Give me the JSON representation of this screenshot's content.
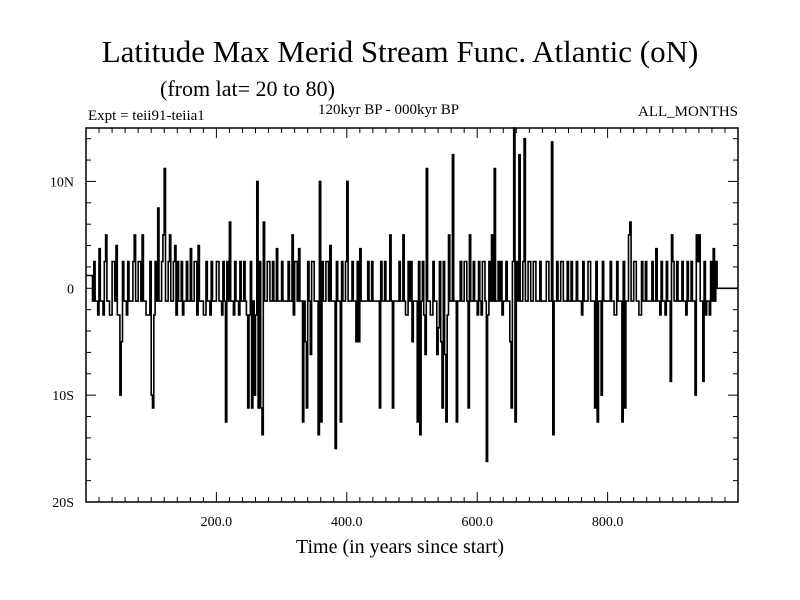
{
  "header": {
    "title": "Latitude Max Merid Stream Func. Atlantic (oN)",
    "subtitle": "(from lat= 20 to 80)",
    "experiment": "Expt = teii91-teiia1",
    "period": "120kyr BP - 000kyr BP",
    "months": "ALL_MONTHS"
  },
  "chart_data": {
    "type": "line",
    "title": "Latitude Max Merid Stream Func. Atlantic (oN)",
    "subtitle": "(from lat= 20 to 80)",
    "xlabel": "Time (in years since start)",
    "ylabel": "",
    "xlim": [
      0,
      1000
    ],
    "ylim": [
      -20,
      15
    ],
    "x_ticks": [
      {
        "value": 200,
        "label": "200.0"
      },
      {
        "value": 400,
        "label": "400.0"
      },
      {
        "value": 600,
        "label": "600.0"
      },
      {
        "value": 800,
        "label": "800.0"
      }
    ],
    "y_ticks": [
      {
        "value": 10,
        "label": "10N"
      },
      {
        "value": 0,
        "label": "0"
      },
      {
        "value": -10,
        "label": "10S"
      },
      {
        "value": -20,
        "label": "20S"
      }
    ],
    "baseline": -1.2,
    "step_points": [
      [
        0,
        1.2
      ],
      [
        8,
        1.2
      ],
      [
        10,
        -1.2
      ],
      [
        12,
        2.5
      ],
      [
        14,
        -1.2
      ],
      [
        18,
        -2.5
      ],
      [
        20,
        3.7
      ],
      [
        22,
        -1.2
      ],
      [
        26,
        -2.5
      ],
      [
        28,
        2.5
      ],
      [
        30,
        5.0
      ],
      [
        32,
        -1.2
      ],
      [
        36,
        -2.5
      ],
      [
        40,
        2.5
      ],
      [
        44,
        -1.2
      ],
      [
        46,
        4.0
      ],
      [
        48,
        -2.5
      ],
      [
        52,
        -10.0
      ],
      [
        54,
        -5.0
      ],
      [
        56,
        2.5
      ],
      [
        58,
        -1.2
      ],
      [
        62,
        -2.5
      ],
      [
        64,
        2.5
      ],
      [
        66,
        -1.2
      ],
      [
        72,
        2.5
      ],
      [
        74,
        5.0
      ],
      [
        76,
        -1.2
      ],
      [
        80,
        2.5
      ],
      [
        84,
        -1.2
      ],
      [
        86,
        5.0
      ],
      [
        88,
        -1.2
      ],
      [
        92,
        -2.5
      ],
      [
        96,
        -2.5
      ],
      [
        98,
        2.5
      ],
      [
        100,
        -10.0
      ],
      [
        102,
        -11.2
      ],
      [
        104,
        -2.5
      ],
      [
        106,
        2.5
      ],
      [
        108,
        -1.2
      ],
      [
        110,
        7.5
      ],
      [
        112,
        -1.2
      ],
      [
        116,
        2.5
      ],
      [
        118,
        5.0
      ],
      [
        120,
        11.2
      ],
      [
        122,
        -1.2
      ],
      [
        126,
        2.5
      ],
      [
        128,
        5.0
      ],
      [
        130,
        -1.2
      ],
      [
        134,
        2.5
      ],
      [
        136,
        4.0
      ],
      [
        138,
        -2.5
      ],
      [
        140,
        2.5
      ],
      [
        142,
        -1.2
      ],
      [
        146,
        2.5
      ],
      [
        148,
        -2.5
      ],
      [
        150,
        -1.2
      ],
      [
        154,
        2.5
      ],
      [
        156,
        -1.2
      ],
      [
        160,
        3.7
      ],
      [
        162,
        -1.2
      ],
      [
        166,
        2.5
      ],
      [
        170,
        -2.5
      ],
      [
        172,
        4.0
      ],
      [
        174,
        -1.2
      ],
      [
        180,
        -2.5
      ],
      [
        184,
        2.5
      ],
      [
        186,
        -1.2
      ],
      [
        190,
        -2.5
      ],
      [
        192,
        2.5
      ],
      [
        194,
        -1.2
      ],
      [
        200,
        2.5
      ],
      [
        204,
        -1.2
      ],
      [
        208,
        -2.5
      ],
      [
        210,
        2.5
      ],
      [
        212,
        -1.2
      ],
      [
        214,
        -12.5
      ],
      [
        216,
        2.5
      ],
      [
        218,
        -1.2
      ],
      [
        220,
        6.2
      ],
      [
        222,
        -1.2
      ],
      [
        226,
        -2.5
      ],
      [
        228,
        2.5
      ],
      [
        230,
        -1.2
      ],
      [
        234,
        -2.5
      ],
      [
        236,
        2.5
      ],
      [
        238,
        -1.2
      ],
      [
        242,
        2.5
      ],
      [
        244,
        -1.2
      ],
      [
        246,
        -2.5
      ],
      [
        248,
        -11.2
      ],
      [
        250,
        -2.5
      ],
      [
        252,
        2.5
      ],
      [
        254,
        -11.2
      ],
      [
        256,
        -1.2
      ],
      [
        258,
        -10.0
      ],
      [
        260,
        -2.5
      ],
      [
        262,
        10.0
      ],
      [
        264,
        -11.2
      ],
      [
        266,
        2.5
      ],
      [
        268,
        -11.2
      ],
      [
        270,
        -13.7
      ],
      [
        272,
        6.2
      ],
      [
        274,
        -1.2
      ],
      [
        278,
        2.5
      ],
      [
        282,
        -1.2
      ],
      [
        286,
        2.5
      ],
      [
        288,
        -1.2
      ],
      [
        292,
        3.7
      ],
      [
        294,
        -1.2
      ],
      [
        296,
        -1.2
      ],
      [
        300,
        2.5
      ],
      [
        302,
        -1.2
      ],
      [
        308,
        -1.2
      ],
      [
        310,
        2.5
      ],
      [
        312,
        -1.2
      ],
      [
        316,
        5.0
      ],
      [
        318,
        -2.5
      ],
      [
        320,
        2.5
      ],
      [
        324,
        -1.2
      ],
      [
        326,
        3.7
      ],
      [
        328,
        -1.2
      ],
      [
        332,
        -12.5
      ],
      [
        334,
        -1.2
      ],
      [
        336,
        -5.0
      ],
      [
        338,
        -11.2
      ],
      [
        340,
        2.5
      ],
      [
        342,
        -1.2
      ],
      [
        344,
        -6.2
      ],
      [
        346,
        2.5
      ],
      [
        350,
        -1.2
      ],
      [
        354,
        -1.2
      ],
      [
        356,
        -13.7
      ],
      [
        358,
        10.0
      ],
      [
        360,
        -12.5
      ],
      [
        362,
        2.5
      ],
      [
        364,
        -1.2
      ],
      [
        368,
        2.5
      ],
      [
        372,
        -1.2
      ],
      [
        374,
        4.0
      ],
      [
        376,
        -1.2
      ],
      [
        380,
        -1.2
      ],
      [
        382,
        -15.0
      ],
      [
        384,
        2.5
      ],
      [
        386,
        -1.2
      ],
      [
        390,
        -12.5
      ],
      [
        392,
        2.5
      ],
      [
        394,
        -1.2
      ],
      [
        398,
        2.5
      ],
      [
        400,
        10.0
      ],
      [
        402,
        -1.2
      ],
      [
        406,
        -1.2
      ],
      [
        408,
        2.5
      ],
      [
        410,
        -1.2
      ],
      [
        414,
        -5.0
      ],
      [
        416,
        2.5
      ],
      [
        418,
        -5.0
      ],
      [
        420,
        3.7
      ],
      [
        422,
        -1.2
      ],
      [
        428,
        -1.2
      ],
      [
        432,
        2.5
      ],
      [
        434,
        -1.2
      ],
      [
        438,
        2.5
      ],
      [
        440,
        -1.2
      ],
      [
        444,
        -1.2
      ],
      [
        448,
        -1.2
      ],
      [
        450,
        -11.2
      ],
      [
        452,
        2.5
      ],
      [
        454,
        -1.2
      ],
      [
        458,
        2.5
      ],
      [
        460,
        -1.2
      ],
      [
        466,
        5.0
      ],
      [
        468,
        -1.2
      ],
      [
        470,
        -11.2
      ],
      [
        472,
        -1.2
      ],
      [
        476,
        -1.2
      ],
      [
        480,
        2.5
      ],
      [
        482,
        -1.2
      ],
      [
        486,
        5.0
      ],
      [
        488,
        -1.2
      ],
      [
        490,
        -2.5
      ],
      [
        494,
        2.5
      ],
      [
        496,
        -1.2
      ],
      [
        498,
        2.5
      ],
      [
        500,
        -5.0
      ],
      [
        502,
        -1.2
      ],
      [
        508,
        -12.5
      ],
      [
        510,
        2.5
      ],
      [
        512,
        -13.7
      ],
      [
        514,
        -1.2
      ],
      [
        516,
        2.5
      ],
      [
        518,
        -2.5
      ],
      [
        520,
        -6.2
      ],
      [
        522,
        11.2
      ],
      [
        524,
        -1.2
      ],
      [
        528,
        -2.5
      ],
      [
        532,
        2.5
      ],
      [
        534,
        -1.2
      ],
      [
        538,
        -6.2
      ],
      [
        540,
        -3.7
      ],
      [
        542,
        2.5
      ],
      [
        544,
        -5.0
      ],
      [
        546,
        -11.2
      ],
      [
        548,
        2.5
      ],
      [
        550,
        -6.2
      ],
      [
        552,
        -12.5
      ],
      [
        554,
        -2.5
      ],
      [
        556,
        5.0
      ],
      [
        558,
        -1.2
      ],
      [
        562,
        12.5
      ],
      [
        564,
        -1.2
      ],
      [
        568,
        -12.5
      ],
      [
        570,
        -1.2
      ],
      [
        574,
        2.5
      ],
      [
        576,
        -1.2
      ],
      [
        580,
        2.5
      ],
      [
        584,
        -1.2
      ],
      [
        586,
        -11.2
      ],
      [
        588,
        5.0
      ],
      [
        590,
        -1.2
      ],
      [
        594,
        2.5
      ],
      [
        596,
        -1.2
      ],
      [
        600,
        -2.5
      ],
      [
        602,
        2.5
      ],
      [
        604,
        -1.2
      ],
      [
        606,
        -2.5
      ],
      [
        608,
        2.5
      ],
      [
        612,
        -1.2
      ],
      [
        614,
        -16.2
      ],
      [
        616,
        -2.5
      ],
      [
        618,
        2.5
      ],
      [
        620,
        -1.2
      ],
      [
        622,
        5.0
      ],
      [
        624,
        -1.2
      ],
      [
        626,
        11.2
      ],
      [
        628,
        -1.2
      ],
      [
        632,
        2.5
      ],
      [
        634,
        -1.2
      ],
      [
        636,
        2.5
      ],
      [
        638,
        -2.5
      ],
      [
        640,
        -1.2
      ],
      [
        644,
        2.5
      ],
      [
        646,
        -1.2
      ],
      [
        650,
        -5.0
      ],
      [
        652,
        -11.2
      ],
      [
        654,
        2.5
      ],
      [
        656,
        15.0
      ],
      [
        658,
        -12.5
      ],
      [
        660,
        2.5
      ],
      [
        662,
        -1.2
      ],
      [
        664,
        12.5
      ],
      [
        666,
        -1.2
      ],
      [
        670,
        2.5
      ],
      [
        672,
        14.0
      ],
      [
        674,
        -1.2
      ],
      [
        678,
        2.5
      ],
      [
        682,
        -1.2
      ],
      [
        686,
        2.5
      ],
      [
        690,
        -1.2
      ],
      [
        694,
        -1.2
      ],
      [
        696,
        2.5
      ],
      [
        698,
        -1.2
      ],
      [
        702,
        -1.2
      ],
      [
        706,
        2.5
      ],
      [
        710,
        -1.2
      ],
      [
        714,
        13.7
      ],
      [
        716,
        -13.7
      ],
      [
        718,
        -1.2
      ],
      [
        722,
        2.5
      ],
      [
        724,
        -1.2
      ],
      [
        728,
        2.5
      ],
      [
        732,
        -1.2
      ],
      [
        738,
        2.5
      ],
      [
        740,
        -1.2
      ],
      [
        744,
        2.5
      ],
      [
        746,
        -1.2
      ],
      [
        750,
        -1.2
      ],
      [
        752,
        2.5
      ],
      [
        754,
        -1.2
      ],
      [
        760,
        -2.5
      ],
      [
        762,
        2.5
      ],
      [
        764,
        -1.2
      ],
      [
        770,
        2.5
      ],
      [
        774,
        -1.2
      ],
      [
        780,
        -11.2
      ],
      [
        782,
        2.5
      ],
      [
        784,
        -12.5
      ],
      [
        786,
        -1.2
      ],
      [
        790,
        -10.0
      ],
      [
        792,
        2.5
      ],
      [
        794,
        -1.2
      ],
      [
        800,
        -1.2
      ],
      [
        804,
        2.5
      ],
      [
        806,
        -1.2
      ],
      [
        810,
        -2.5
      ],
      [
        814,
        2.5
      ],
      [
        816,
        -1.2
      ],
      [
        820,
        -1.2
      ],
      [
        822,
        -12.5
      ],
      [
        824,
        2.5
      ],
      [
        826,
        -11.2
      ],
      [
        828,
        -1.2
      ],
      [
        832,
        5.0
      ],
      [
        834,
        6.2
      ],
      [
        836,
        -1.2
      ],
      [
        840,
        2.5
      ],
      [
        844,
        -1.2
      ],
      [
        848,
        -2.5
      ],
      [
        852,
        2.5
      ],
      [
        854,
        -1.2
      ],
      [
        858,
        2.5
      ],
      [
        860,
        -1.2
      ],
      [
        864,
        -1.2
      ],
      [
        868,
        2.5
      ],
      [
        870,
        -1.2
      ],
      [
        874,
        3.7
      ],
      [
        876,
        -1.2
      ],
      [
        880,
        -2.5
      ],
      [
        882,
        2.5
      ],
      [
        884,
        -1.2
      ],
      [
        888,
        -2.5
      ],
      [
        890,
        2.5
      ],
      [
        892,
        -1.2
      ],
      [
        896,
        -8.7
      ],
      [
        898,
        5.0
      ],
      [
        900,
        2.5
      ],
      [
        902,
        -1.2
      ],
      [
        906,
        2.5
      ],
      [
        908,
        -1.2
      ],
      [
        912,
        -1.2
      ],
      [
        914,
        2.5
      ],
      [
        916,
        -1.2
      ],
      [
        920,
        -2.5
      ],
      [
        922,
        2.5
      ],
      [
        924,
        -1.2
      ],
      [
        928,
        2.5
      ],
      [
        930,
        -1.2
      ],
      [
        934,
        -10.0
      ],
      [
        936,
        5.0
      ],
      [
        938,
        2.5
      ],
      [
        940,
        5.0
      ],
      [
        942,
        -1.2
      ],
      [
        946,
        -8.7
      ],
      [
        948,
        2.5
      ],
      [
        950,
        -2.5
      ],
      [
        952,
        -1.2
      ],
      [
        956,
        -2.5
      ],
      [
        958,
        2.5
      ],
      [
        960,
        -1.2
      ],
      [
        962,
        3.7
      ],
      [
        964,
        -1.2
      ],
      [
        966,
        2.5
      ],
      [
        968,
        0.0
      ],
      [
        970,
        0.0
      ],
      [
        974,
        0.0
      ],
      [
        978,
        0.0
      ],
      [
        982,
        0.0
      ],
      [
        986,
        0.0
      ],
      [
        990,
        0.0
      ],
      [
        996,
        0.0
      ],
      [
        1000,
        0.0
      ]
    ]
  }
}
